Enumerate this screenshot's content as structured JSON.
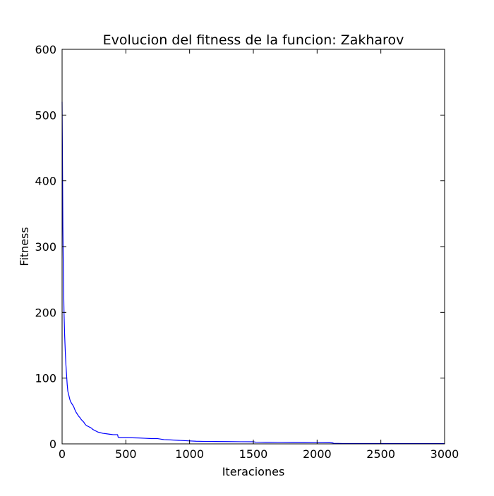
{
  "chart_data": {
    "type": "line",
    "title": "Evolucion del fitness de la funcion: Zakharov",
    "xlabel": "Iteraciones",
    "ylabel": "Fitness",
    "xlim": [
      0,
      3000
    ],
    "ylim": [
      0,
      600
    ],
    "xticks": [
      0,
      500,
      1000,
      1500,
      2000,
      2500,
      3000
    ],
    "yticks": [
      0,
      100,
      200,
      300,
      400,
      500,
      600
    ],
    "grid": false,
    "legend": "none",
    "series": [
      {
        "color": "#0000ff",
        "x": [
          0,
          3,
          6,
          10,
          15,
          20,
          25,
          30,
          35,
          40,
          45,
          50,
          55,
          60,
          65,
          70,
          80,
          90,
          100,
          110,
          120,
          130,
          140,
          150,
          160,
          170,
          180,
          190,
          200,
          210,
          220,
          230,
          240,
          250,
          260,
          270,
          280,
          290,
          300,
          320,
          340,
          360,
          380,
          400,
          420,
          435,
          440,
          450,
          500,
          550,
          600,
          650,
          700,
          750,
          780,
          800,
          850,
          900,
          950,
          1000,
          1050,
          1100,
          1200,
          1300,
          1400,
          1500,
          1520,
          1600,
          1700,
          1800,
          1900,
          2000,
          2100,
          2120,
          2130,
          2200,
          2500,
          3000
        ],
        "y": [
          520,
          430,
          330,
          260,
          200,
          165,
          140,
          120,
          105,
          90,
          80,
          76,
          72,
          68,
          65,
          63,
          60,
          57,
          52,
          48,
          45,
          42,
          40,
          37,
          35,
          33,
          30,
          28,
          27,
          26,
          25,
          24,
          22,
          21,
          20,
          19,
          18,
          17.5,
          17,
          16,
          15.5,
          15,
          14.5,
          14,
          14,
          14,
          10,
          9.5,
          9.5,
          9.2,
          9,
          8.5,
          8,
          8,
          7,
          6.5,
          6,
          5.5,
          5,
          4.5,
          4,
          3.8,
          3.6,
          3.5,
          3.3,
          3.2,
          2.5,
          2.3,
          2.1,
          2,
          1.9,
          1.8,
          1.7,
          1.5,
          0.8,
          0.6,
          0.5,
          0.4
        ]
      }
    ]
  }
}
